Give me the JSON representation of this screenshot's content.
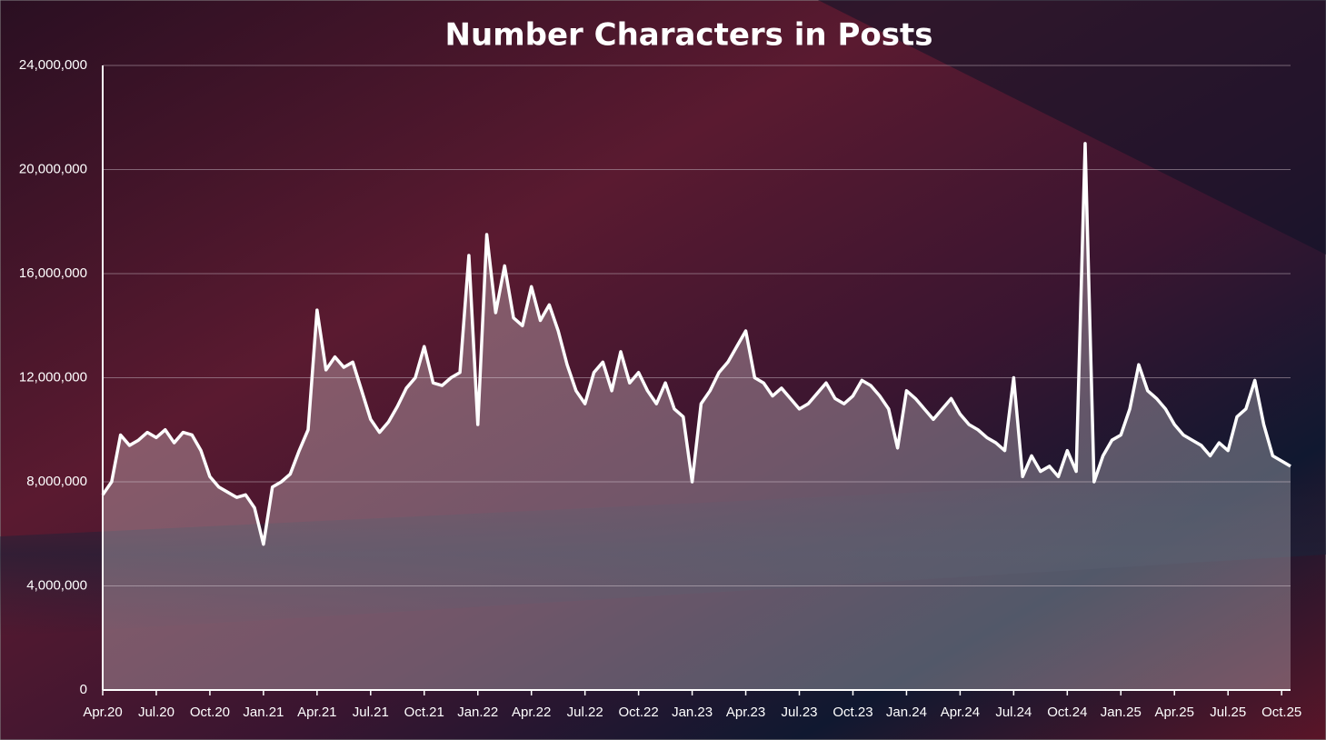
{
  "chart_data": {
    "type": "line",
    "title": "Number Characters in Posts",
    "categories": [
      "Apr.20",
      null,
      null,
      null,
      null,
      null,
      "Jul.20",
      null,
      null,
      null,
      null,
      null,
      "Oct.20",
      null,
      null,
      null,
      null,
      null,
      "Jan.21",
      null,
      null,
      null,
      null,
      null,
      "Apr.21",
      null,
      null,
      null,
      null,
      null,
      "Jul.21",
      null,
      null,
      null,
      null,
      null,
      "Oct.21",
      null,
      null,
      null,
      null,
      null,
      "Jan.22",
      null,
      null,
      null,
      null,
      null,
      "Apr.22",
      null,
      null,
      null,
      null,
      null,
      "Jul.22",
      null,
      null,
      null,
      null,
      null,
      "Oct.22",
      null,
      null,
      null,
      null,
      null,
      "Jan.23",
      null,
      null,
      null,
      null,
      null,
      "Apr.23",
      null,
      null,
      null,
      null,
      null,
      "Jul.23",
      null,
      null,
      null,
      null,
      null,
      "Oct.23",
      null,
      null,
      null,
      null,
      null,
      "Jan.24",
      null,
      null,
      null,
      null,
      null,
      "Apr.24",
      null,
      null,
      null,
      null,
      null,
      "Jul.24",
      null,
      null,
      null,
      null,
      null,
      "Oct.24",
      null,
      null,
      null,
      null,
      null,
      "Jan.25",
      null,
      null,
      null,
      null,
      null,
      "Apr.25",
      null,
      null,
      null,
      null,
      null,
      "Jul.25",
      null,
      null,
      null,
      null,
      null,
      "Oct.25",
      null
    ],
    "values": [
      7500000,
      8000000,
      9800000,
      9400000,
      9600000,
      9900000,
      9700000,
      10000000,
      9500000,
      9900000,
      9800000,
      9200000,
      8200000,
      7800000,
      7600000,
      7400000,
      7500000,
      7000000,
      5600000,
      7800000,
      8000000,
      8300000,
      9200000,
      10000000,
      14600000,
      12300000,
      12800000,
      12400000,
      12600000,
      11500000,
      10400000,
      9900000,
      10300000,
      10900000,
      11600000,
      12000000,
      13200000,
      11800000,
      11700000,
      12000000,
      12200000,
      16700000,
      10200000,
      17500000,
      14500000,
      16300000,
      14300000,
      14000000,
      15500000,
      14200000,
      14800000,
      13800000,
      12500000,
      11500000,
      11000000,
      12200000,
      12600000,
      11500000,
      13000000,
      11800000,
      12200000,
      11500000,
      11000000,
      11800000,
      10800000,
      10500000,
      8000000,
      11000000,
      11500000,
      12200000,
      12600000,
      13200000,
      13800000,
      12000000,
      11800000,
      11300000,
      11600000,
      11200000,
      10800000,
      11000000,
      11400000,
      11800000,
      11200000,
      11000000,
      11300000,
      11900000,
      11700000,
      11300000,
      10800000,
      9300000,
      11500000,
      11200000,
      10800000,
      10400000,
      10800000,
      11200000,
      10600000,
      10200000,
      10000000,
      9700000,
      9500000,
      9200000,
      12000000,
      8200000,
      9000000,
      8400000,
      8600000,
      8200000,
      9200000,
      8400000,
      21000000,
      8000000,
      9000000,
      9600000,
      9800000,
      10800000,
      12500000,
      11500000,
      11200000,
      10800000,
      10200000,
      9800000,
      9600000,
      9400000,
      9000000,
      9500000,
      9200000,
      10500000,
      10800000,
      11900000,
      10200000,
      9000000,
      8800000,
      8600000
    ],
    "color": "#ffffff",
    "ylim": [
      0,
      24000000
    ],
    "yticks": [
      0,
      {
        "value": 4000000,
        "label": "4,000,000"
      },
      {
        "value": 8000000,
        "label": "8,000,000"
      },
      {
        "value": 12000000,
        "label": "12,000,000"
      },
      {
        "value": 16000000,
        "label": "16,000,000"
      },
      {
        "value": 20000000,
        "label": "20,000,000"
      },
      {
        "value": 24000000,
        "label": "24,000,000"
      }
    ],
    "grid": true
  }
}
